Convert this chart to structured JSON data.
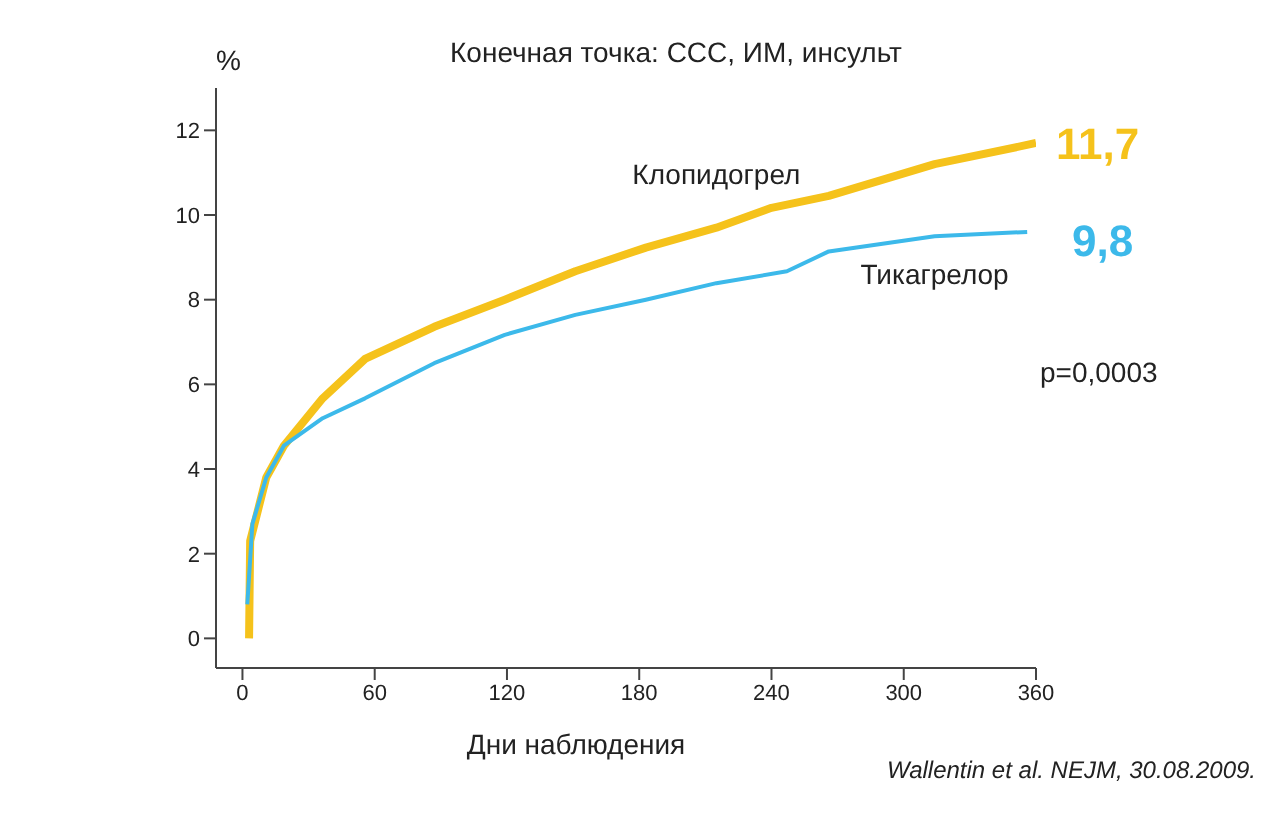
{
  "chart_data": {
    "type": "line",
    "title": "Конечная точка: ССС, ИМ, инсульт",
    "ylabel": "%",
    "xlabel": "Дни наблюдения",
    "xlim": [
      -12,
      360
    ],
    "xticks": [
      0,
      60,
      120,
      180,
      240,
      300,
      360
    ],
    "ylim": [
      -0.7,
      13
    ],
    "yticks": [
      0,
      2,
      4,
      6,
      8,
      10,
      12
    ],
    "grid": false,
    "legend": false,
    "marker": "none",
    "line_style": "solid",
    "series": [
      {
        "name": "Клопидогрел",
        "color": "#f5c21b",
        "x": [
          3,
          3.5,
          10.8,
          18.8,
          36.4,
          55.6,
          87,
          119,
          151,
          183,
          215,
          240,
          266,
          314,
          360
        ],
        "values": [
          0,
          2.3,
          3.8,
          4.55,
          5.67,
          6.6,
          7.36,
          8.0,
          8.67,
          9.23,
          9.7,
          10.17,
          10.45,
          11.2,
          11.7
        ]
      },
      {
        "name": "Тикагрелор",
        "color": "#3cb9ea",
        "x": [
          2.2,
          4.5,
          10.8,
          18.8,
          36.4,
          55.6,
          87,
          119,
          151,
          183,
          215,
          247,
          266,
          314,
          356
        ],
        "values": [
          0.8,
          2.7,
          3.8,
          4.55,
          5.2,
          5.67,
          6.5,
          7.17,
          7.64,
          8.0,
          8.39,
          8.67,
          9.14,
          9.5,
          9.6
        ]
      }
    ],
    "annotations": [
      {
        "text": "11,7",
        "x": 360,
        "y": 11.7
      },
      "9,8",
      "p=0,0003",
      "Wallentin et al. NEJM, 30.08.2009."
    ]
  }
}
